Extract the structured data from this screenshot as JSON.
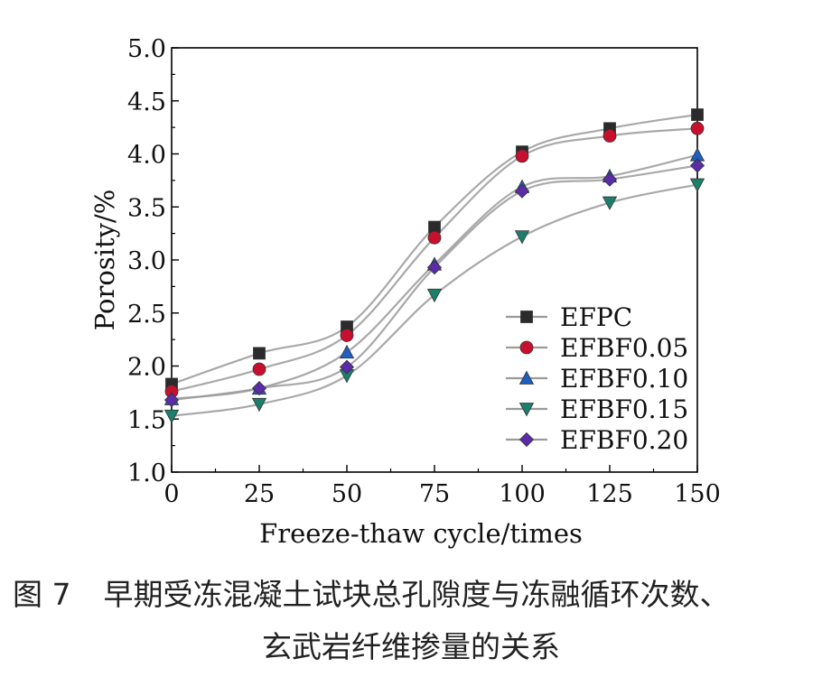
{
  "chart_data": {
    "type": "line",
    "xlabel": "Freeze-thaw cycle/times",
    "ylabel": "Porosity/%",
    "x": [
      0,
      25,
      50,
      75,
      100,
      125,
      150
    ],
    "xticks": [
      "0",
      "25",
      "50",
      "75",
      "100",
      "125",
      "150"
    ],
    "yticks": [
      "1.0",
      "1.5",
      "2.0",
      "2.5",
      "3.0",
      "3.5",
      "4.0",
      "4.5",
      "5.0"
    ],
    "xlim": [
      0,
      150
    ],
    "ylim": [
      1.0,
      5.0
    ],
    "grid": false,
    "legend_position": "bottom-right",
    "series": [
      {
        "name": "EFPC",
        "values": [
          1.83,
          2.12,
          2.37,
          3.31,
          4.02,
          4.24,
          4.37
        ],
        "color": "#2b2b2b",
        "marker": "square"
      },
      {
        "name": "EFBF0.05",
        "values": [
          1.76,
          1.97,
          2.29,
          3.21,
          3.98,
          4.17,
          4.24
        ],
        "color": "#c8102e",
        "marker": "circle"
      },
      {
        "name": "EFBF0.10",
        "values": [
          1.69,
          1.79,
          2.13,
          2.96,
          3.69,
          3.79,
          3.99
        ],
        "color": "#1f5fbf",
        "marker": "triangle-up"
      },
      {
        "name": "EFBF0.15",
        "values": [
          1.53,
          1.64,
          1.91,
          2.67,
          3.22,
          3.54,
          3.71
        ],
        "color": "#1b7f6b",
        "marker": "triangle-down"
      },
      {
        "name": "EFBF0.20",
        "values": [
          1.68,
          1.79,
          1.99,
          2.93,
          3.65,
          3.76,
          3.89
        ],
        "color": "#5a2ca8",
        "marker": "diamond"
      }
    ]
  },
  "caption": {
    "figure_label": "图 7",
    "line1": "早期受冻混凝土试块总孔隙度与冻融循环次数、",
    "line2": "玄武岩纤维掺量的关系"
  }
}
